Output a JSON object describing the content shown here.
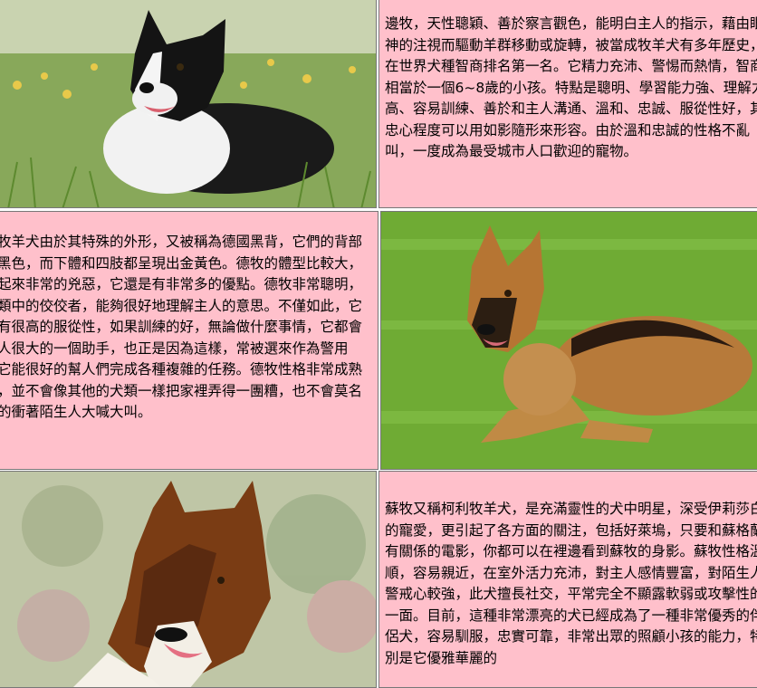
{
  "grid": {
    "images": [
      {
        "name": "border-collie-photo",
        "subject": "Border Collie lying in grass"
      },
      {
        "name": "german-shepherd-photo",
        "subject": "German Shepherd lying on lawn"
      },
      {
        "name": "rough-collie-photo",
        "subject": "Rough Collie portrait"
      }
    ],
    "texts": {
      "border_collie": "邊牧，天性聰穎、善於察言觀色，能明白主人的指示，藉由眼神的注視而驅動羊群移動或旋轉，被當成牧羊犬有多年歷史，在世界犬種智商排名第一名。它精力充沛、警惕而熱情，智商相當於一個6~8歲的小孩。特點是聰明、學習能力強、理解力高、容易訓練、善於和主人溝通、溫和、忠誠、服從性好，其忠心程度可以用如影隨形來形容。由於溫和忠誠的性格不亂叫，一度成為最受城市人口歡迎的寵物。",
      "german_shepherd": "德國牧羊犬由於其特殊的外形，又被稱為德國黑背，它們的背部呈現黑色，而下體和四肢都呈現出金黃色。德牧的體型比較大，雖看起來非常的兇惡，它還是有非常多的優點。德牧非常聰明，屬犬類中的佼佼者，能夠很好地理解主人的意思。不僅如此，它還具有很高的服從性，如果訓練的好，無論做什麼事情，它都會是主人很大的一個助手，也正是因為這樣，常被選來作為警用犬，它能很好的幫人們完成各種複雜的任務。德牧性格非常成熟穩重，並不會像其他的犬類一樣把家裡弄得一團糟，也不會莫名其妙的衝著陌生人大喊大叫。",
      "rough_collie": "蘇牧又稱柯利牧羊犬，是充滿靈性的犬中明星，深受伊莉莎白的寵愛，更引起了各方面的關注，包括好萊塢，只要和蘇格蘭有關係的電影，你都可以在裡邊看到蘇牧的身影。蘇牧性格溫順，容易親近，在室外活力充沛，對主人感情豐富，對陌生人警戒心較強，此犬擅長社交，平常完全不顯露軟弱或攻擊性的一面。目前，這種非常漂亮的犬已經成為了一種非常優秀的伴侶犬，容易馴服，忠實可靠，非常出眾的照顧小孩的能力，特別是它優雅華麗的"
    }
  }
}
